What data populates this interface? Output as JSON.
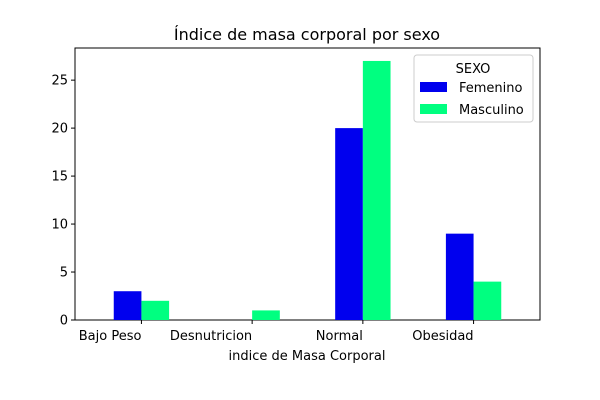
{
  "chart_data": {
    "type": "bar",
    "title": "Índice de masa corporal por sexo",
    "xlabel": "indice de Masa Corporal",
    "ylabel": "",
    "categories": [
      "Bajo Peso",
      "Desnutricion",
      "Normal",
      "Obesidad"
    ],
    "series": [
      {
        "name": "Femenino",
        "color": "#0000ee",
        "values": [
          3,
          0,
          20,
          9
        ]
      },
      {
        "name": "Masculino",
        "color": "#00ff80",
        "values": [
          2,
          1,
          27,
          4
        ]
      }
    ],
    "ylim": [
      0,
      28.35
    ],
    "yticks": [
      0,
      5,
      10,
      15,
      20,
      25
    ],
    "grid": false,
    "legend": {
      "title": "SEXO",
      "placement": "top-right"
    }
  }
}
